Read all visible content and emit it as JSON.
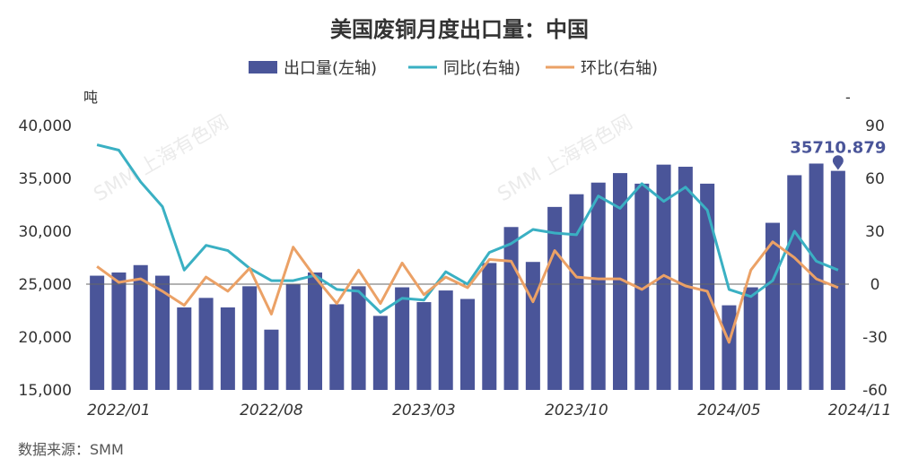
{
  "chart_data": {
    "type": "bar",
    "title": "美国废铜月度出口量：中国",
    "legend": {
      "bar": "出口量(左轴)",
      "yoy": "同比(右轴)",
      "mom": "环比(右轴)"
    },
    "y_left_unit": "吨",
    "y_right_unit": "-",
    "ylim_left": [
      15000,
      40000
    ],
    "ylim_right": [
      -60,
      90
    ],
    "y_left_ticks": [
      15000,
      20000,
      25000,
      30000,
      35000,
      40000
    ],
    "y_left_tick_labels": [
      "15,000",
      "20,000",
      "25,000",
      "30,000",
      "35,000",
      "40,000"
    ],
    "y_right_ticks": [
      -60,
      -30,
      0,
      30,
      60,
      90
    ],
    "y_right_tick_labels": [
      "-60",
      "-30",
      "0",
      "30",
      "60",
      "90"
    ],
    "x_tick_labels": [
      {
        "index": 1,
        "label": "2022/01"
      },
      {
        "index": 8,
        "label": "2022/08"
      },
      {
        "index": 15,
        "label": "2023/03"
      },
      {
        "index": 22,
        "label": "2023/10"
      },
      {
        "index": 29,
        "label": "2024/05"
      },
      {
        "index": 35,
        "label": "2024/11"
      }
    ],
    "series": [
      {
        "name": "出口量(左轴)",
        "type": "bar",
        "axis": "left",
        "color": "#4a5599",
        "values": [
          25800,
          26100,
          26800,
          25800,
          22800,
          23700,
          22800,
          24800,
          20700,
          25000,
          26100,
          23100,
          24800,
          22000,
          24700,
          23300,
          24400,
          23600,
          27000,
          30400,
          27100,
          32300,
          33500,
          34600,
          35500,
          34500,
          36300,
          36100,
          34500,
          23000,
          24700,
          30800,
          35300,
          36400,
          35710.879
        ]
      },
      {
        "name": "同比(右轴)",
        "type": "line",
        "axis": "right",
        "color": "#3ab0c3",
        "values": [
          79,
          76,
          58,
          44,
          8,
          22,
          19,
          9,
          2,
          2,
          5,
          -3,
          -4,
          -16,
          -8,
          -9,
          7,
          0,
          18,
          23,
          31,
          29,
          28,
          50,
          43,
          57,
          47,
          55,
          42,
          -3,
          -7,
          2,
          30,
          13,
          8
        ]
      },
      {
        "name": "环比(右轴)",
        "type": "line",
        "axis": "right",
        "color": "#eba166",
        "values": [
          10,
          1,
          3,
          -4,
          -12,
          4,
          -4,
          9,
          -17,
          21,
          4,
          -11,
          8,
          -11,
          12,
          -6,
          4,
          -2,
          14,
          13,
          -10,
          19,
          4,
          3,
          3,
          -3,
          5,
          -1,
          -4,
          -33,
          8,
          24,
          15,
          3,
          -2
        ]
      }
    ],
    "annotation": {
      "label": "35710.879",
      "index": 34
    }
  },
  "source_text": "数据来源：SMM",
  "watermark": "SMM 上海有色网"
}
